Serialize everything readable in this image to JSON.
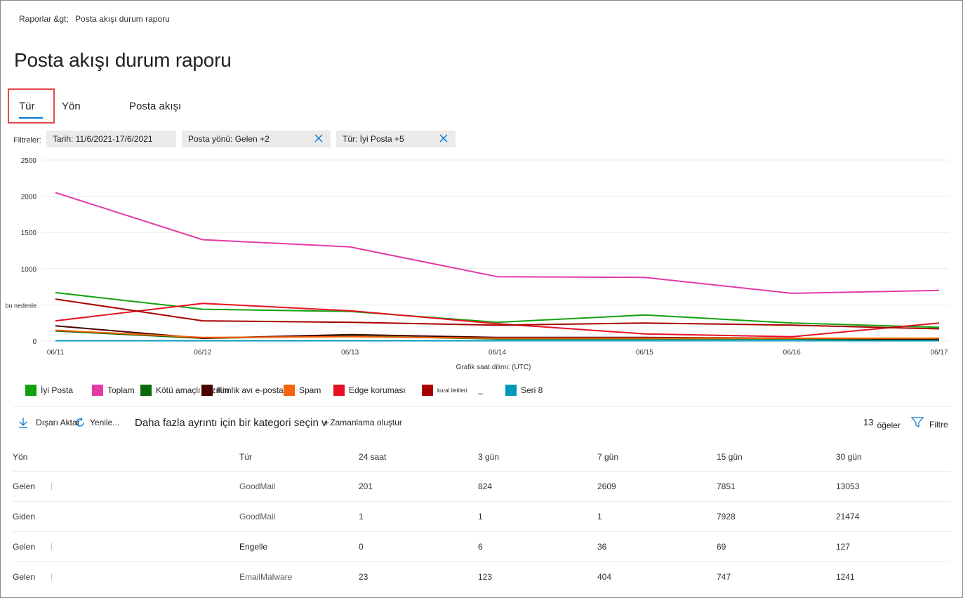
{
  "breadcrumb": {
    "root": "Raporlar &gt;",
    "current": "Posta akışı durum raporu"
  },
  "page_title": "Posta akışı durum raporu",
  "tabs": [
    {
      "label": "Tür",
      "active": true
    },
    {
      "label": "Yön",
      "active": false
    },
    {
      "label": "Posta akışı",
      "active": false
    }
  ],
  "filters": {
    "label": "Filtreler:",
    "chips": [
      {
        "label": "Tarih: 11/6/2021-17/6/2021",
        "removable": false
      },
      {
        "label": "Posta yönü: Gelen +2",
        "removable": true
      },
      {
        "label": "Tür: İyi Posta +5",
        "removable": true
      }
    ]
  },
  "chart_data": {
    "type": "line",
    "title": "",
    "xlabel": "Grafik saat dilimi: (UTC)",
    "ylabel": "",
    "ylim": [
      0,
      2500
    ],
    "yticks": [
      0,
      500,
      1000,
      1500,
      2000,
      2500
    ],
    "ytick_labels": [
      "0",
      "bu nedenle",
      "1000",
      "1500",
      "2000",
      "2500"
    ],
    "categories": [
      "06/11",
      "06/12",
      "06/13",
      "06/14",
      "06/15",
      "06/16",
      "06/17"
    ],
    "series": [
      {
        "name": "İyi Posta",
        "color": "#13a10e",
        "values": [
          670,
          440,
          410,
          260,
          360,
          250,
          190
        ]
      },
      {
        "name": "Toplam",
        "color": "#e43ba6",
        "values": [
          2050,
          1400,
          1300,
          890,
          880,
          660,
          700
        ]
      },
      {
        "name": "Kötü amaçlı yazılım",
        "color": "#0b6a0b",
        "values": [
          140,
          40,
          70,
          30,
          30,
          30,
          20
        ]
      },
      {
        "name": "Kimlik avı e-postası",
        "color": "#4b0000",
        "values": [
          210,
          40,
          90,
          50,
          50,
          40,
          30
        ]
      },
      {
        "name": "Spam",
        "color": "#f7630c",
        "values": [
          150,
          50,
          60,
          40,
          40,
          40,
          40
        ]
      },
      {
        "name": "Edge koruması",
        "color": "#e81123",
        "values": [
          280,
          520,
          420,
          240,
          100,
          60,
          250
        ]
      },
      {
        "name": "kural iletileri",
        "color": "#a80000",
        "values": [
          580,
          280,
          260,
          220,
          250,
          220,
          170
        ]
      },
      {
        "name": "Seri 8",
        "color": "#0099bc",
        "values": [
          5,
          5,
          5,
          5,
          5,
          5,
          5
        ]
      }
    ]
  },
  "legend_extra": "_",
  "toolbar": {
    "export": "Dışarı Aktar",
    "refresh": "Yenile",
    "ellipsis": "...",
    "category_prompt": "Daha fazla ayrıntı için bir kategori seçin v",
    "schedule": "Zamanlama oluştur",
    "count": "13",
    "count_label": "öğeler",
    "filter": "Filtre"
  },
  "table": {
    "columns": [
      "Yön",
      "Tür",
      "24 saat",
      "3 gün",
      "7 gün",
      "15 gün",
      "30 gün"
    ],
    "rows": [
      {
        "direction": "Gelen",
        "type": "GoodMail",
        "h24": "201",
        "d3": "824",
        "d7": "2609",
        "d15": "7851",
        "d30": "13053"
      },
      {
        "direction": "Giden",
        "type": "GoodMail",
        "h24": "1",
        "d3": "1",
        "d7": "1",
        "d15": "7928",
        "d30": "21474"
      },
      {
        "direction": "Gelen",
        "type": "Engelle",
        "h24": "0",
        "d3": "6",
        "d7": "36",
        "d15": "69",
        "d30": "127"
      },
      {
        "direction": "Gelen",
        "type": "EmailMalware",
        "h24": "23",
        "d3": "123",
        "d7": "404",
        "d15": "747",
        "d30": "1241"
      }
    ]
  }
}
